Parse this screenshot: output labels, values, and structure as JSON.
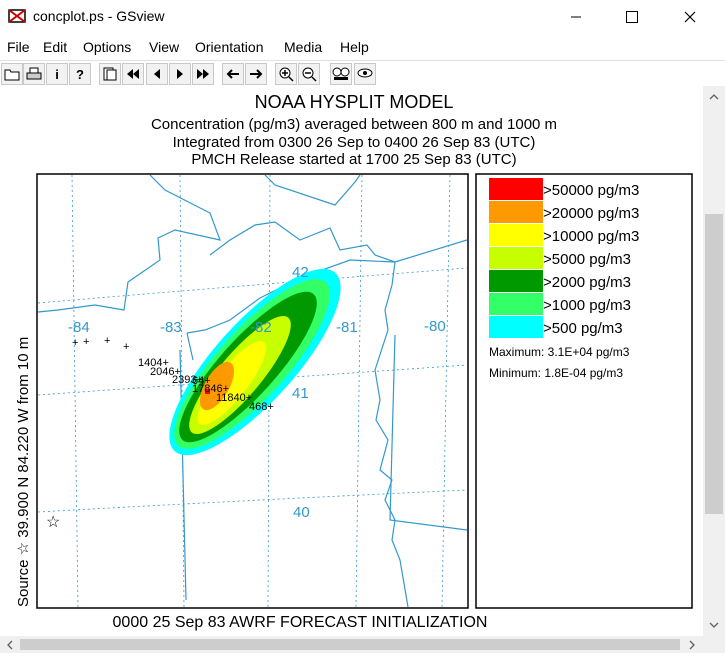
{
  "window": {
    "title": "concplot.ps - GSview",
    "minimize_glyph": "—",
    "maximize_glyph": "☐",
    "close_glyph": "✕"
  },
  "menu": [
    "File",
    "Edit",
    "Options",
    "View",
    "Orientation",
    "Media",
    "Help"
  ],
  "toolbar": {
    "icons": [
      "open-icon",
      "print-icon",
      "info-icon",
      "help-icon",
      "goto-page-icon",
      "first-page-icon",
      "previous-page-icon",
      "next-page-icon",
      "last-page-icon",
      "back-icon",
      "forward-icon",
      "zoom-in-icon",
      "zoom-out-icon",
      "magnifier-icon",
      "display-settings-icon"
    ],
    "glyphs": [
      "",
      "",
      "i",
      "?",
      "",
      "",
      "",
      "",
      "",
      "",
      "",
      "",
      "",
      "",
      ""
    ]
  },
  "plot": {
    "title": "NOAA HYSPLIT MODEL",
    "line1": "Concentration  (pg/m3) averaged between    800 m and  1000 m",
    "line2": "Integrated from 0300 26 Sep to 0400 26 Sep 83 (UTC)",
    "line3": "PMCH Release started at 1700 25 Sep 83 (UTC)",
    "y_axis_label": "Source ☆  39.900  N  84.220  W       from   10 m",
    "footer": "0000 25 Sep 83 AWRF FORECAST INITIALIZATION",
    "longitude_labels": [
      "-84",
      "-83",
      "-82",
      "-81",
      "-80"
    ],
    "latitude_labels": [
      "42",
      "41",
      "40"
    ],
    "point_labels": [
      "1404+",
      "2046+",
      "2393+",
      "64+",
      "17846+",
      "11840+",
      "468+"
    ],
    "source_marker": "☆",
    "legend": [
      {
        "label": ">50000 pg/m3",
        "color": "#ff0000"
      },
      {
        "label": ">20000 pg/m3",
        "color": "#ff9900"
      },
      {
        "label": ">10000 pg/m3",
        "color": "#ffff00"
      },
      {
        "label": ">5000 pg/m3",
        "color": "#c8ff00"
      },
      {
        "label": ">2000 pg/m3",
        "color": "#009900"
      },
      {
        "label": ">1000 pg/m3",
        "color": "#33ff66"
      },
      {
        "label": ">500 pg/m3",
        "color": "#00ffff"
      }
    ],
    "maximum": "Maximum: 3.1E+04 pg/m3",
    "minimum": "Minimum: 1.8E-04 pg/m3",
    "map_line_color": "#3399cc"
  }
}
